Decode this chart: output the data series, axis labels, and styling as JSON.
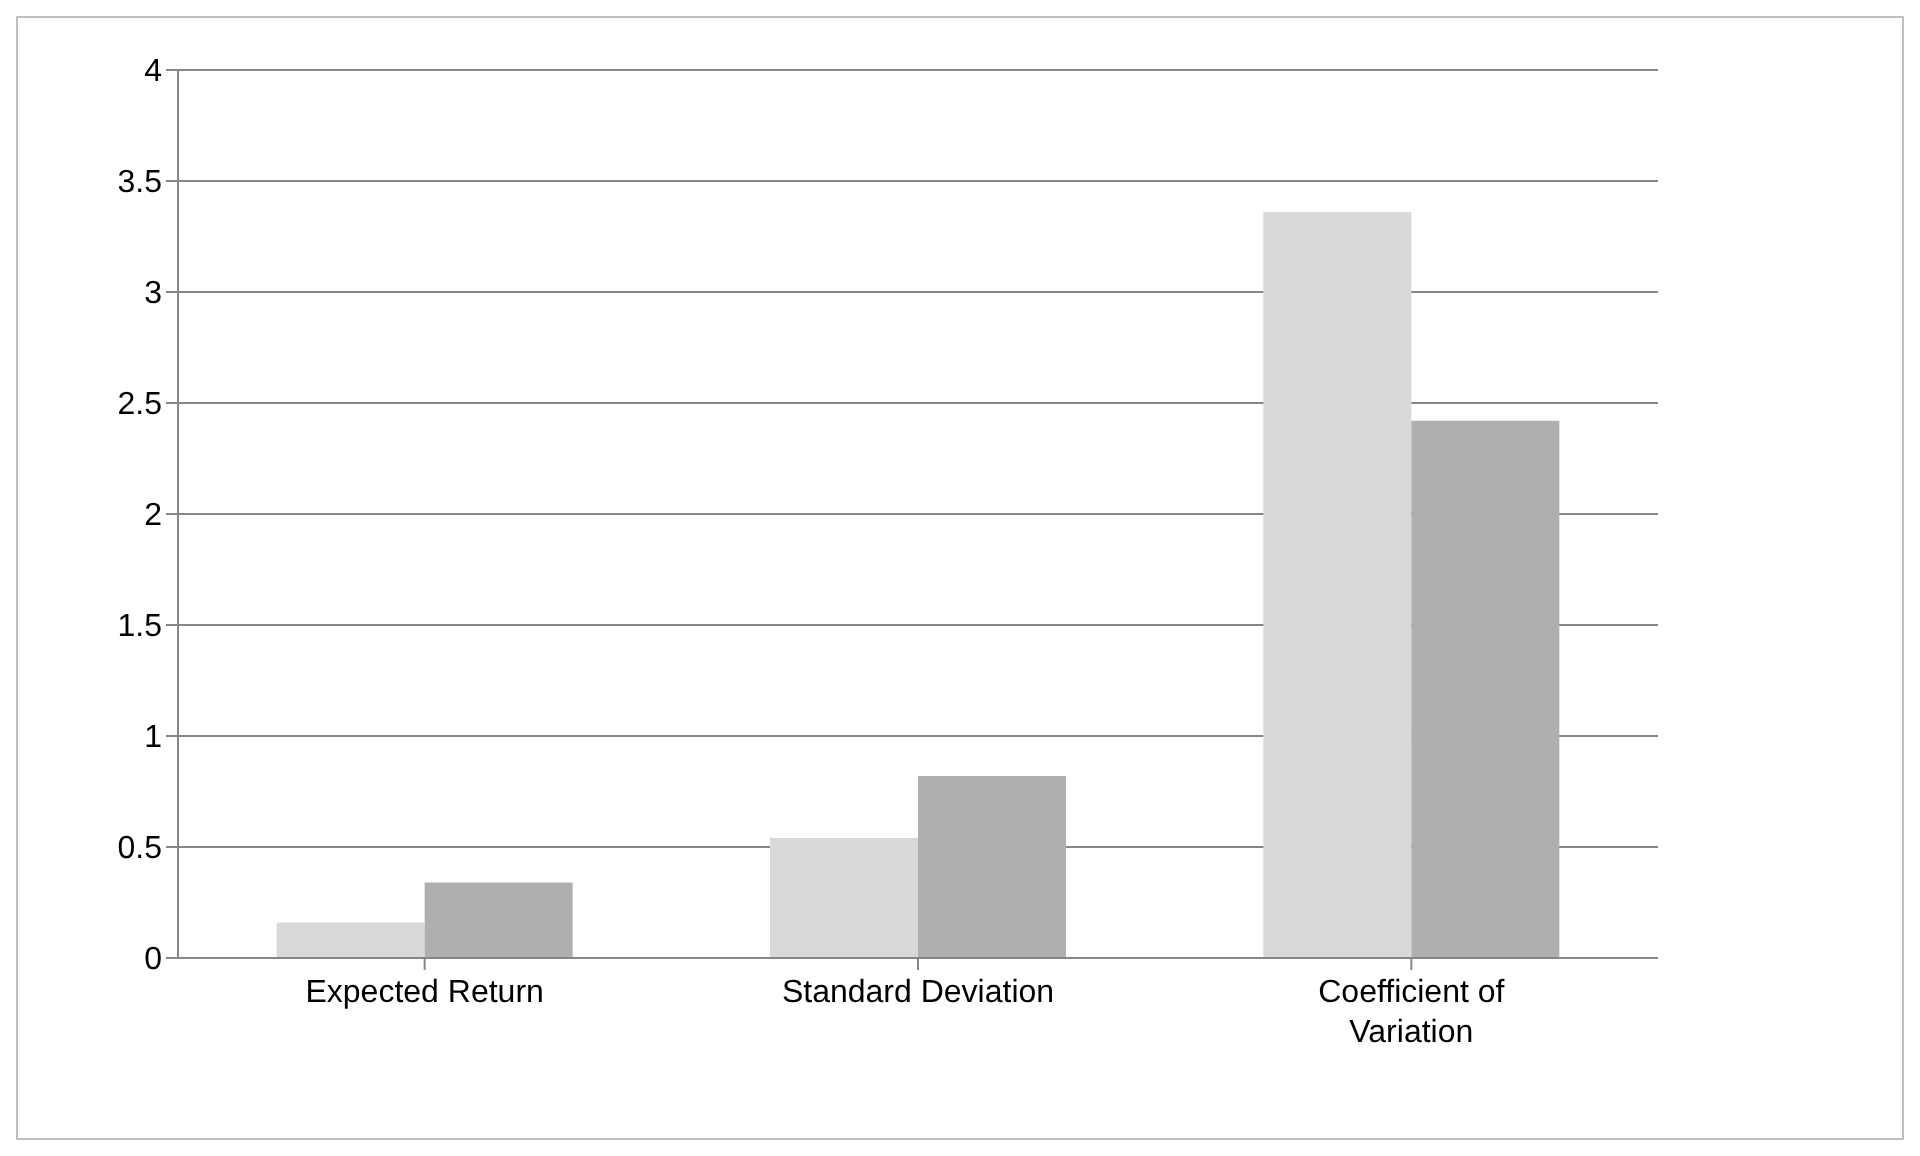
{
  "chart_data": {
    "type": "bar",
    "categories": [
      "Expected Return",
      "Standard Deviation",
      "Coefficient of Variation"
    ],
    "series": [
      {
        "color": "#d9d9d9",
        "values": [
          0.16,
          0.54,
          3.36
        ]
      },
      {
        "color": "#afafaf",
        "values": [
          0.34,
          0.82,
          2.42
        ]
      }
    ],
    "ylim": [
      0,
      4
    ],
    "yticks": [
      0,
      0.5,
      1,
      1.5,
      2,
      2.5,
      3,
      3.5,
      4
    ],
    "grid": "y"
  }
}
